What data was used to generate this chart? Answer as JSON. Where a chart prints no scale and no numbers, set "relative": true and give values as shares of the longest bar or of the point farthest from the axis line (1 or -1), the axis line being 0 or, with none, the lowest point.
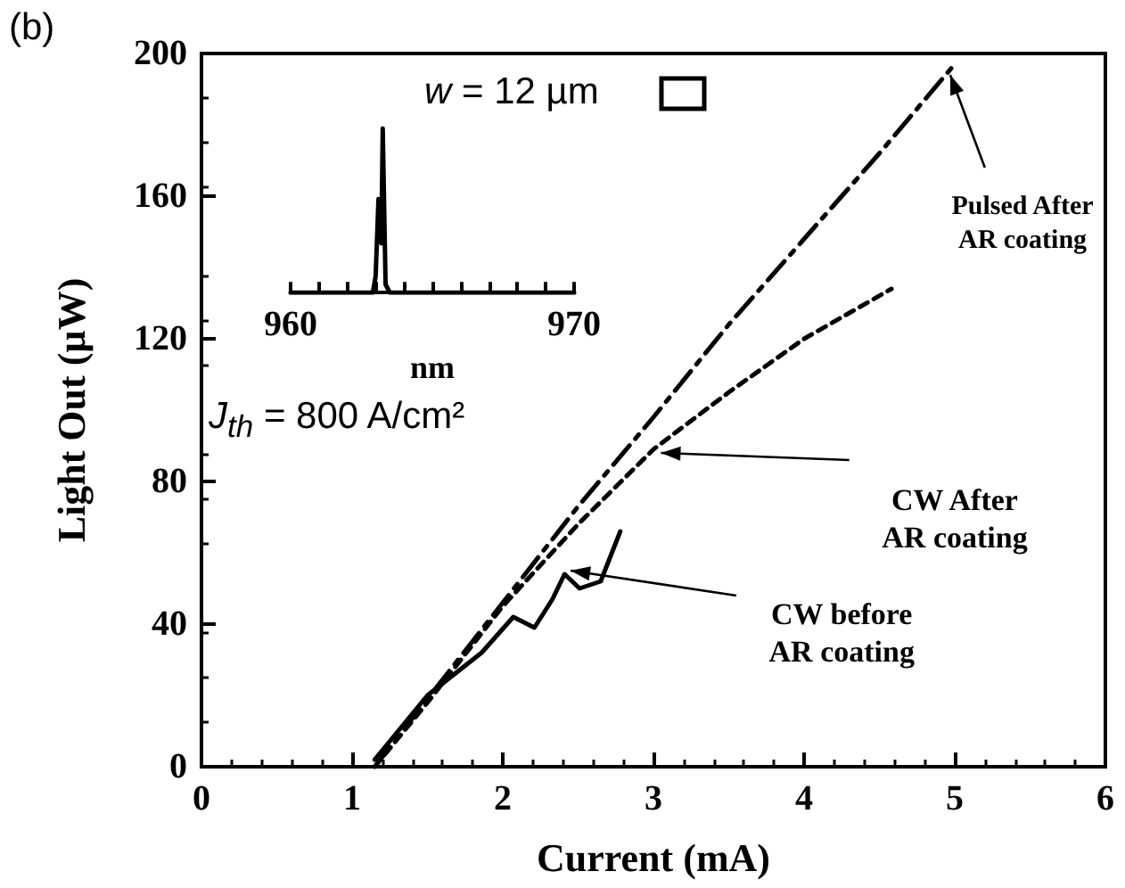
{
  "chart_data": [
    {
      "type": "line",
      "xlabel": "Current (mA)",
      "ylabel": "Light Out (µW)",
      "xlim": [
        0,
        6
      ],
      "xticks": [
        0,
        1,
        2,
        3,
        4,
        5,
        6
      ],
      "ylim": [
        0,
        200
      ],
      "yticks": [
        0,
        40,
        80,
        120,
        160,
        200
      ],
      "grid": false,
      "legend": false,
      "marker": "none",
      "annotations": [
        "(b)",
        "w = 12 µm",
        "J$_{th}$ = 800 A/cm²"
      ],
      "series": [
        {
          "name": "Pulsed After AR coating",
          "color": "#000000",
          "line_style": "dashed",
          "x": [
            1.15,
            1.5,
            2,
            2.5,
            3,
            3.5,
            4,
            4.5,
            5
          ],
          "values": [
            0,
            19,
            46,
            73,
            98,
            124,
            148,
            172,
            197
          ]
        },
        {
          "name": "CW After AR coating",
          "color": "#000000",
          "line_style": "dotted",
          "x": [
            1.15,
            1.5,
            2,
            2.5,
            3,
            3.5,
            4,
            4.58
          ],
          "values": [
            0,
            18,
            45,
            68,
            89,
            105,
            120,
            134
          ]
        },
        {
          "name": "CW before AR coating",
          "color": "#000000",
          "line_style": "solid",
          "x": [
            1.15,
            1.5,
            1.86,
            2.07,
            2.21,
            2.33,
            2.41,
            2.51,
            2.65,
            2.78
          ],
          "values": [
            2,
            20,
            32,
            42,
            39,
            47,
            54,
            50,
            52,
            66
          ]
        }
      ]
    },
    {
      "type": "line",
      "xlabel": "nm",
      "relative": true,
      "xlim": [
        960,
        970
      ],
      "xticks": [
        960,
        {
          "value": 961,
          "label": null
        },
        {
          "value": 962,
          "label": null
        },
        {
          "value": 963,
          "label": null
        },
        {
          "value": 964,
          "label": null
        },
        {
          "value": 965,
          "label": null
        },
        {
          "value": 966,
          "label": null
        },
        {
          "value": 967,
          "label": null
        },
        {
          "value": 968,
          "label": null
        },
        {
          "value": 969,
          "label": null
        },
        970
      ],
      "series": [
        {
          "color": "#000000",
          "x": [
            960,
            962.9,
            963.0,
            963.1,
            963.2,
            963.25,
            963.35,
            963.5,
            970
          ],
          "values": [
            0,
            0,
            0.1,
            0.57,
            0.3,
            1,
            0.05,
            0,
            0
          ]
        }
      ]
    }
  ]
}
